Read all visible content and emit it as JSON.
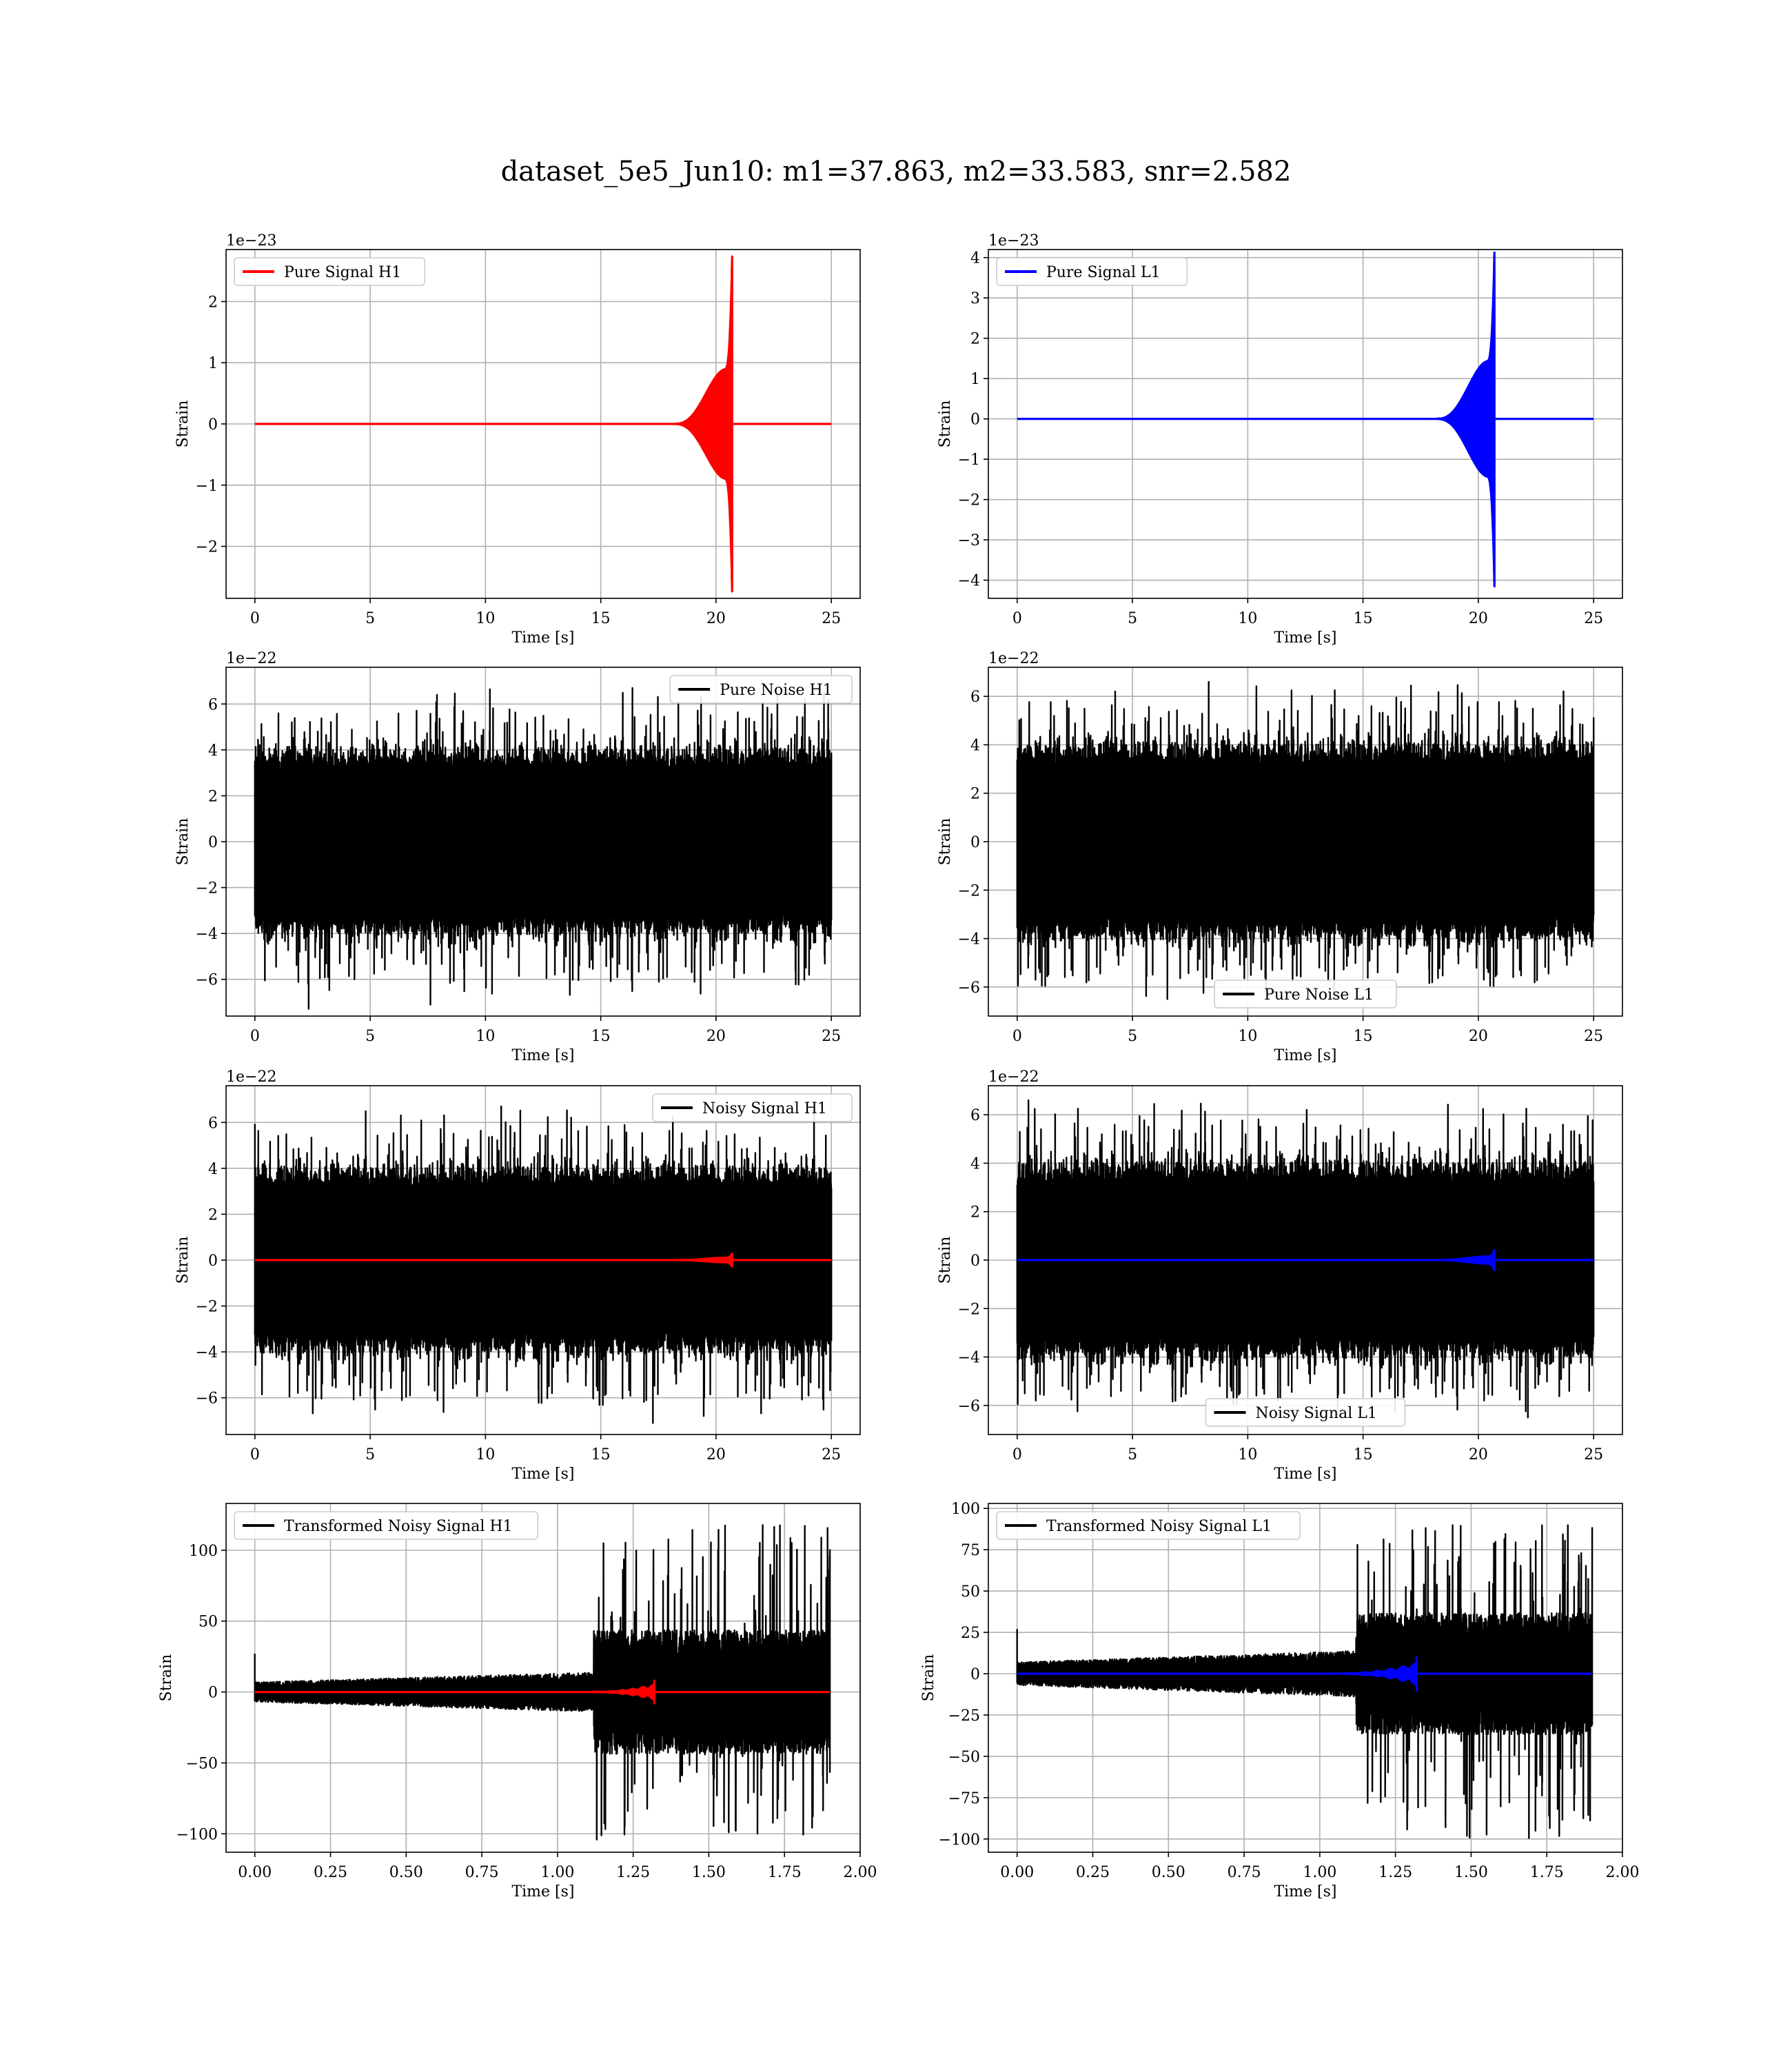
{
  "figure": {
    "title": "dataset_5e5_Jun10: m1=37.863, m2=33.583, snr=2.582"
  },
  "colors": {
    "signal_h1": "#ff0000",
    "signal_l1": "#0000ff",
    "noise": "#000000",
    "grid": "#b0b0b0"
  },
  "chart_data": [
    {
      "id": "pure-signal-h1",
      "type": "line",
      "title": "",
      "xlabel": "Time [s]",
      "ylabel": "Strain",
      "offset_text": "1e−23",
      "xlim": [
        -1.25,
        26.25
      ],
      "ylim": [
        -2.85,
        2.85
      ],
      "xticks": [
        0,
        5,
        10,
        15,
        20,
        25
      ],
      "xtick_labels": [
        "0",
        "5",
        "10",
        "15",
        "20",
        "25"
      ],
      "yticks": [
        -2,
        -1,
        0,
        1,
        2
      ],
      "ytick_labels": [
        "−2",
        "−1",
        "0",
        "1",
        "2"
      ],
      "grid": true,
      "legend_position": "upper-left",
      "series": [
        {
          "name": "Pure Signal H1",
          "kind": "chirp",
          "color": "#ff0000",
          "x_range": [
            0,
            25
          ],
          "t_merge": 20.7,
          "envelope_peak": 0.75,
          "peak_max": 2.6,
          "peak_min": -2.62
        }
      ]
    },
    {
      "id": "pure-signal-l1",
      "type": "line",
      "title": "",
      "xlabel": "Time [s]",
      "ylabel": "Strain",
      "offset_text": "1e−23",
      "xlim": [
        -1.25,
        26.25
      ],
      "ylim": [
        -4.45,
        4.2
      ],
      "xticks": [
        0,
        5,
        10,
        15,
        20,
        25
      ],
      "xtick_labels": [
        "0",
        "5",
        "10",
        "15",
        "20",
        "25"
      ],
      "yticks": [
        -4,
        -3,
        -2,
        -1,
        0,
        1,
        2,
        3,
        4
      ],
      "ytick_labels": [
        "−4",
        "−3",
        "−2",
        "−1",
        "0",
        "1",
        "2",
        "3",
        "4"
      ],
      "grid": true,
      "legend_position": "upper-left",
      "series": [
        {
          "name": "Pure Signal L1",
          "kind": "chirp",
          "color": "#0000ff",
          "x_range": [
            0,
            25
          ],
          "t_merge": 20.7,
          "envelope_peak": 1.2,
          "peak_max": 3.9,
          "peak_min": -4.15
        }
      ]
    },
    {
      "id": "pure-noise-h1",
      "type": "line",
      "title": "",
      "xlabel": "Time [s]",
      "ylabel": "Strain",
      "offset_text": "1e−22",
      "xlim": [
        -1.25,
        26.25
      ],
      "ylim": [
        -7.6,
        7.6
      ],
      "xticks": [
        0,
        5,
        10,
        15,
        20,
        25
      ],
      "xtick_labels": [
        "0",
        "5",
        "10",
        "15",
        "20",
        "25"
      ],
      "yticks": [
        -6,
        -4,
        -2,
        0,
        2,
        4,
        6
      ],
      "ytick_labels": [
        "−6",
        "−4",
        "−2",
        "0",
        "2",
        "4",
        "6"
      ],
      "grid": true,
      "legend_position": "upper-right",
      "series": [
        {
          "name": "Pure Noise H1",
          "kind": "noise",
          "color": "#000000",
          "x_range": [
            0,
            25
          ],
          "core": 3.0,
          "spike_max": 6.7,
          "spike_min": -7.1
        }
      ]
    },
    {
      "id": "pure-noise-l1",
      "type": "line",
      "title": "",
      "xlabel": "Time [s]",
      "ylabel": "Strain",
      "offset_text": "1e−22",
      "xlim": [
        -1.25,
        26.25
      ],
      "ylim": [
        -7.2,
        7.2
      ],
      "xticks": [
        0,
        5,
        10,
        15,
        20,
        25
      ],
      "xtick_labels": [
        "0",
        "5",
        "10",
        "15",
        "20",
        "25"
      ],
      "yticks": [
        -6,
        -4,
        -2,
        0,
        2,
        4,
        6
      ],
      "ytick_labels": [
        "−6",
        "−4",
        "−2",
        "0",
        "2",
        "4",
        "6"
      ],
      "grid": true,
      "legend_position": "lower-center",
      "series": [
        {
          "name": "Pure Noise L1",
          "kind": "noise",
          "color": "#000000",
          "x_range": [
            0,
            25
          ],
          "core": 3.0,
          "spike_max": 6.6,
          "spike_min": -6.5
        }
      ]
    },
    {
      "id": "noisy-signal-h1",
      "type": "line",
      "title": "",
      "xlabel": "Time [s]",
      "ylabel": "Strain",
      "offset_text": "1e−22",
      "xlim": [
        -1.25,
        26.25
      ],
      "ylim": [
        -7.6,
        7.6
      ],
      "xticks": [
        0,
        5,
        10,
        15,
        20,
        25
      ],
      "xtick_labels": [
        "0",
        "5",
        "10",
        "15",
        "20",
        "25"
      ],
      "yticks": [
        -6,
        -4,
        -2,
        0,
        2,
        4,
        6
      ],
      "ytick_labels": [
        "−6",
        "−4",
        "−2",
        "0",
        "2",
        "4",
        "6"
      ],
      "grid": true,
      "legend_position": "upper-right",
      "series": [
        {
          "name": "Noisy Signal H1",
          "kind": "noise",
          "color": "#000000",
          "x_range": [
            0,
            25
          ],
          "core": 3.0,
          "spike_max": 6.7,
          "spike_min": -7.1
        },
        {
          "name": "",
          "kind": "chirp",
          "color": "#ff0000",
          "x_range": [
            0,
            25
          ],
          "t_merge": 20.7,
          "envelope_peak": 0.08,
          "peak_max": 0.26,
          "peak_min": -0.26
        }
      ]
    },
    {
      "id": "noisy-signal-l1",
      "type": "line",
      "title": "",
      "xlabel": "Time [s]",
      "ylabel": "Strain",
      "offset_text": "1e−22",
      "xlim": [
        -1.25,
        26.25
      ],
      "ylim": [
        -7.2,
        7.2
      ],
      "xticks": [
        0,
        5,
        10,
        15,
        20,
        25
      ],
      "xtick_labels": [
        "0",
        "5",
        "10",
        "15",
        "20",
        "25"
      ],
      "yticks": [
        -6,
        -4,
        -2,
        0,
        2,
        4,
        6
      ],
      "ytick_labels": [
        "−6",
        "−4",
        "−2",
        "0",
        "2",
        "4",
        "6"
      ],
      "grid": true,
      "legend_position": "lower-center",
      "series": [
        {
          "name": "Noisy Signal L1",
          "kind": "noise",
          "color": "#000000",
          "x_range": [
            0,
            25
          ],
          "core": 3.0,
          "spike_max": 6.6,
          "spike_min": -6.5
        },
        {
          "name": "",
          "kind": "chirp",
          "color": "#0000ff",
          "x_range": [
            0,
            25
          ],
          "t_merge": 20.7,
          "envelope_peak": 0.12,
          "peak_max": 0.39,
          "peak_min": -0.41
        }
      ]
    },
    {
      "id": "transformed-noisy-signal-h1",
      "type": "line",
      "title": "",
      "xlabel": "Time [s]",
      "ylabel": "Strain",
      "offset_text": "",
      "xlim": [
        -0.095,
        2.0
      ],
      "ylim": [
        -113,
        133
      ],
      "xticks": [
        0,
        0.25,
        0.5,
        0.75,
        1.0,
        1.25,
        1.5,
        1.75,
        2.0
      ],
      "xtick_labels": [
        "0.00",
        "0.25",
        "0.50",
        "0.75",
        "1.00",
        "1.25",
        "1.50",
        "1.75",
        "2.00"
      ],
      "yticks": [
        -100,
        -50,
        0,
        50,
        100
      ],
      "ytick_labels": [
        "−100",
        "−50",
        "0",
        "50",
        "100"
      ],
      "grid": true,
      "legend_position": "upper-left",
      "series": [
        {
          "name": "Transformed Noisy Signal H1",
          "kind": "whitened",
          "color": "#000000",
          "x_range": [
            0,
            1.9
          ],
          "t_jump": 1.12,
          "early_core": 6,
          "late_core": 38,
          "spike_max": 120,
          "spike_min": -105
        },
        {
          "name": "",
          "kind": "chirp",
          "color": "#ff0000",
          "x_range": [
            0,
            1.9
          ],
          "t_merge": 1.32,
          "chirp_start": 1.1,
          "envelope_peak": 4,
          "peak_max": 8,
          "peak_min": -8
        }
      ]
    },
    {
      "id": "transformed-noisy-signal-l1",
      "type": "line",
      "title": "",
      "xlabel": "Time [s]",
      "ylabel": "Strain",
      "offset_text": "",
      "xlim": [
        -0.095,
        2.0
      ],
      "ylim": [
        -108,
        103
      ],
      "xticks": [
        0,
        0.25,
        0.5,
        0.75,
        1.0,
        1.25,
        1.5,
        1.75,
        2.0
      ],
      "xtick_labels": [
        "0.00",
        "0.25",
        "0.50",
        "0.75",
        "1.00",
        "1.25",
        "1.50",
        "1.75",
        "2.00"
      ],
      "yticks": [
        -100,
        -75,
        -50,
        -25,
        0,
        25,
        50,
        75,
        100
      ],
      "ytick_labels": [
        "−100",
        "−75",
        "−50",
        "−25",
        "0",
        "25",
        "50",
        "75",
        "100"
      ],
      "grid": true,
      "legend_position": "upper-left",
      "series": [
        {
          "name": "Transformed Noisy Signal L1",
          "kind": "whitened",
          "color": "#000000",
          "x_range": [
            0,
            1.9
          ],
          "t_jump": 1.12,
          "early_core": 6,
          "late_core": 32,
          "spike_max": 90,
          "spike_min": -100
        },
        {
          "name": "",
          "kind": "chirp",
          "color": "#0000ff",
          "x_range": [
            0,
            1.9
          ],
          "t_merge": 1.32,
          "chirp_start": 1.05,
          "envelope_peak": 5,
          "peak_max": 10,
          "peak_min": -10
        }
      ]
    }
  ]
}
